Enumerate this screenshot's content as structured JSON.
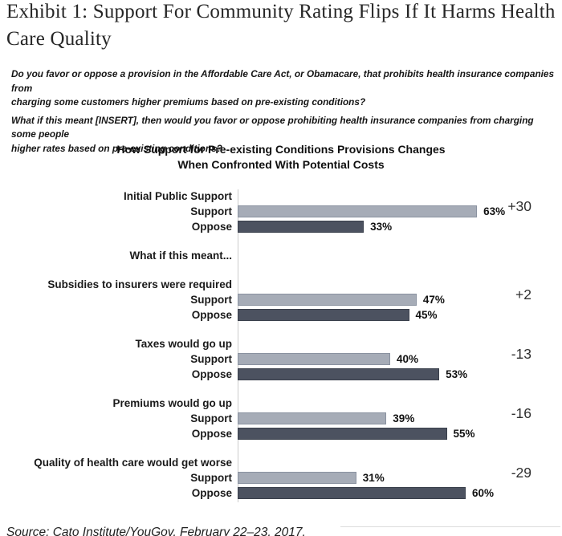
{
  "exhibit": {
    "title_lines": [
      "Exhibit 1: Support For Community Rating Flips If It Harms Health",
      "Care Quality"
    ]
  },
  "questions": {
    "q1_lines": [
      "Do you favor or oppose a provision in the Affordable Care Act, or Obamacare, that prohibits health insurance companies from",
      "charging some customers higher premiums based on pre-existing conditions?"
    ],
    "q2_lines": [
      "What if this meant [INSERT], then would you favor or oppose prohibiting health insurance companies from charging some people",
      "higher rates based on pre-existing conditions?"
    ]
  },
  "chart_data": {
    "type": "bar",
    "orientation": "horizontal",
    "title": "How Support for Pre-existing Conditions Provisions Changes When Confronted With Potential Costs",
    "title_lines": [
      "How Support for Pre-existing Conditions Provisions Changes",
      "When Confronted With Potential Costs"
    ],
    "section_heading": "What if this meant...",
    "section_heading_after_index": 0,
    "categories": [
      "Initial Public Support",
      "Subsidies to insurers were required",
      "Taxes would go up",
      "Premiums would go up",
      "Quality of health care would get worse"
    ],
    "series": [
      {
        "name": "Support",
        "values": [
          63,
          47,
          40,
          39,
          31
        ]
      },
      {
        "name": "Oppose",
        "values": [
          33,
          45,
          53,
          55,
          60
        ]
      }
    ],
    "changes": [
      "+30",
      "+2",
      "-13",
      "-16",
      "-29"
    ],
    "value_suffix": "%",
    "value_labels": true,
    "xlim": [
      0,
      70
    ],
    "grid": false,
    "legend_position": "none",
    "colors": {
      "support": "#a6acb7",
      "oppose": "#4c5260",
      "axis": "#cccccc"
    }
  },
  "source": "Source: Cato Institute/YouGov, February 22–23, 2017."
}
